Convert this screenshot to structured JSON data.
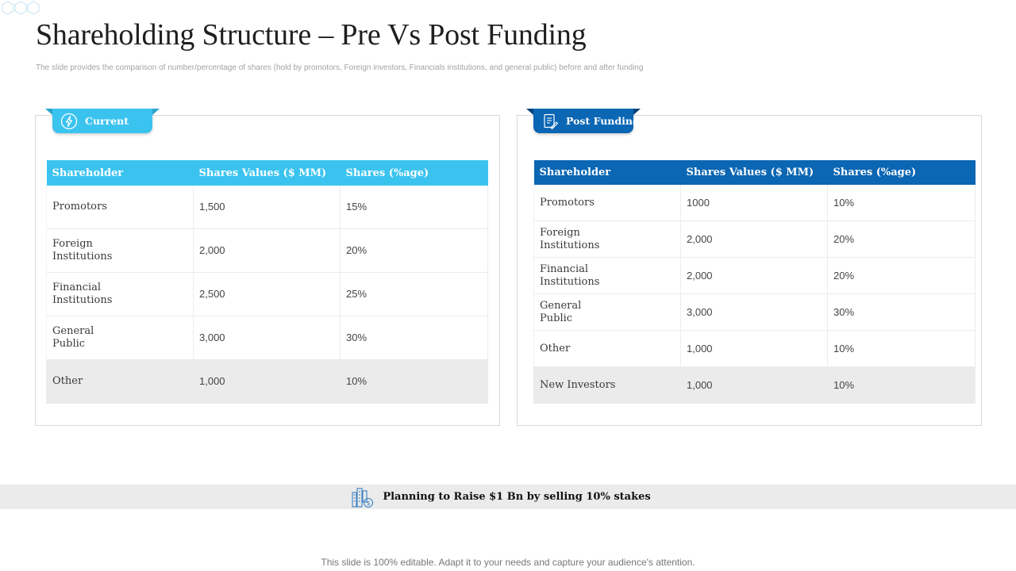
{
  "slide": {
    "title": "Shareholding Structure – Pre Vs Post Funding",
    "subtitle": "The slide provides the comparison of number/percentage of shares (hold by promotors, Foreign investors, Financials institutions, and general public) before and after funding"
  },
  "colors": {
    "current_accent": "#3bc3ef",
    "post_accent": "#0b66b3",
    "shaded_row": "#ebebeb"
  },
  "current": {
    "ribbon_label": "Current",
    "ribbon_icon": "lightning-bolt-icon",
    "headers": [
      "Shareholder",
      "Shares Values ($ MM)",
      "Shares (%age)"
    ],
    "rows": [
      {
        "shareholder": "Promotors",
        "value": "1,500",
        "pct": "15%"
      },
      {
        "shareholder": "Foreign Institutions",
        "value": "2,000",
        "pct": "20%"
      },
      {
        "shareholder": "Financial Institutions",
        "value": "2,500",
        "pct": "25%"
      },
      {
        "shareholder": "General Public",
        "value": "3,000",
        "pct": "30%"
      },
      {
        "shareholder": "Other",
        "value": "1,000",
        "pct": "10%"
      }
    ]
  },
  "post": {
    "ribbon_label": "Post Funding",
    "ribbon_icon": "document-checklist-icon",
    "headers": [
      "Shareholder",
      "Shares Values ($ MM)",
      "Shares (%age)"
    ],
    "rows": [
      {
        "shareholder": "Promotors",
        "value": "1000",
        "pct": "10%"
      },
      {
        "shareholder": "Foreign Institutions",
        "value": "2,000",
        "pct": "20%"
      },
      {
        "shareholder": "Financial Institutions",
        "value": "2,000",
        "pct": "20%"
      },
      {
        "shareholder": "General Public",
        "value": "3,000",
        "pct": "30%"
      },
      {
        "shareholder": "Other",
        "value": "1,000",
        "pct": "10%"
      },
      {
        "shareholder": "New Investors",
        "value": "1,000",
        "pct": "10%"
      }
    ]
  },
  "banner": {
    "text": "Planning to Raise $1 Bn by selling 10% stakes",
    "icon": "finance-buildings-dollar-icon"
  },
  "footer": {
    "text": "This slide is 100% editable. Adapt it to your needs and capture your audience's attention."
  }
}
